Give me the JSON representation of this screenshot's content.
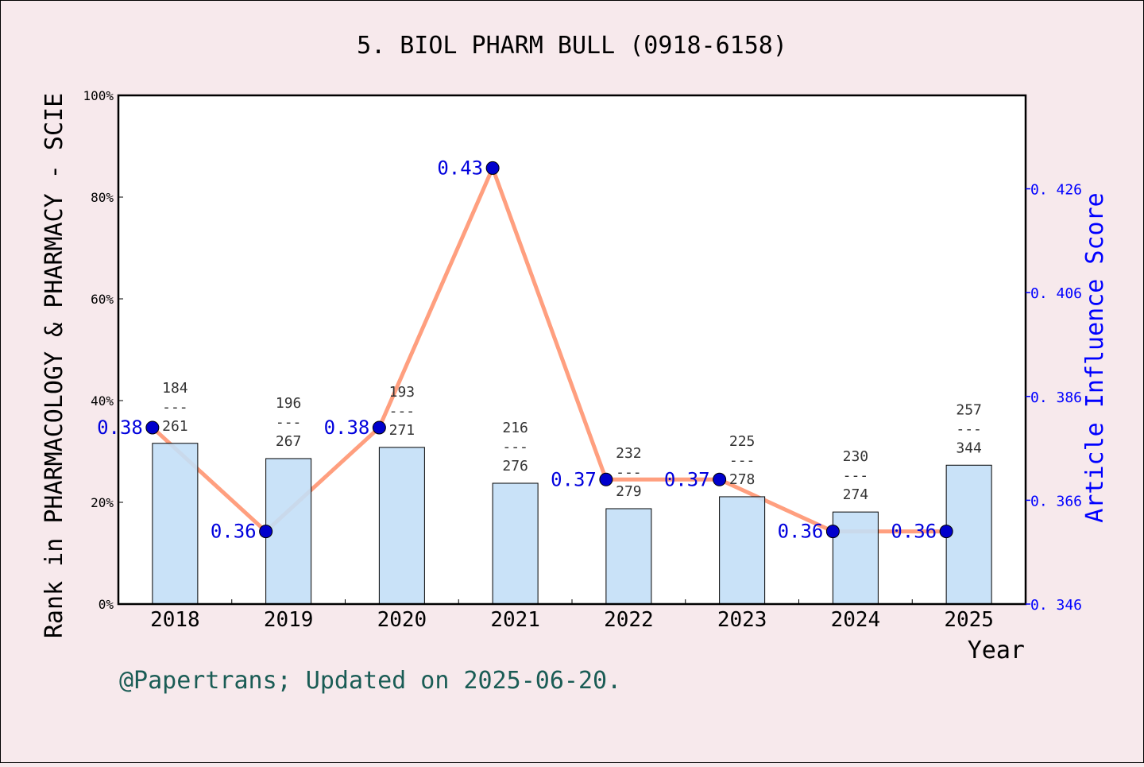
{
  "chart_data": {
    "type": "bar+line",
    "title": "5. BIOL PHARM BULL (0918-6158)",
    "xlabel": "Year",
    "ylabel_left": "Rank in PHARMACOLOGY & PHARMACY - SCIE",
    "ylabel_right": "Article Influence Score",
    "categories": [
      "2018",
      "2019",
      "2020",
      "2021",
      "2022",
      "2023",
      "2024",
      "2025"
    ],
    "left_ylim": [
      0,
      100
    ],
    "left_ticks": [
      "0%",
      "20%",
      "40%",
      "60%",
      "80%",
      "100%"
    ],
    "right_ylim": [
      0.346,
      0.444
    ],
    "right_ticks": [
      "0.346",
      "0.366",
      "0.386",
      "0.406",
      "0.426"
    ],
    "bar_values_percent": [
      31.6,
      28.6,
      30.8,
      23.75,
      18.75,
      21.1,
      18.1,
      27.3
    ],
    "rank_labels": [
      {
        "rank": "184",
        "total": "261"
      },
      {
        "rank": "196",
        "total": "267"
      },
      {
        "rank": "193",
        "total": "271"
      },
      {
        "rank": "216",
        "total": "276"
      },
      {
        "rank": "232",
        "total": "279"
      },
      {
        "rank": "225",
        "total": "278"
      },
      {
        "rank": "230",
        "total": "274"
      },
      {
        "rank": "257",
        "total": "344"
      }
    ],
    "line_values": [
      0.38,
      0.36,
      0.38,
      0.43,
      0.37,
      0.37,
      0.36,
      0.36
    ],
    "line_labels": [
      "0.38",
      "0.36",
      "0.38",
      "0.43",
      "0.37",
      "0.37",
      "0.36",
      "0.36"
    ],
    "grid": false,
    "colors": {
      "bar": "#c3dff7",
      "line": "#ff9f7f",
      "point": "#0000cc",
      "right_axis": "#0000ff",
      "footer": "#1a5c55",
      "background": "#f7e9ec"
    }
  },
  "footer": "@Papertrans; Updated on 2025-06-20."
}
